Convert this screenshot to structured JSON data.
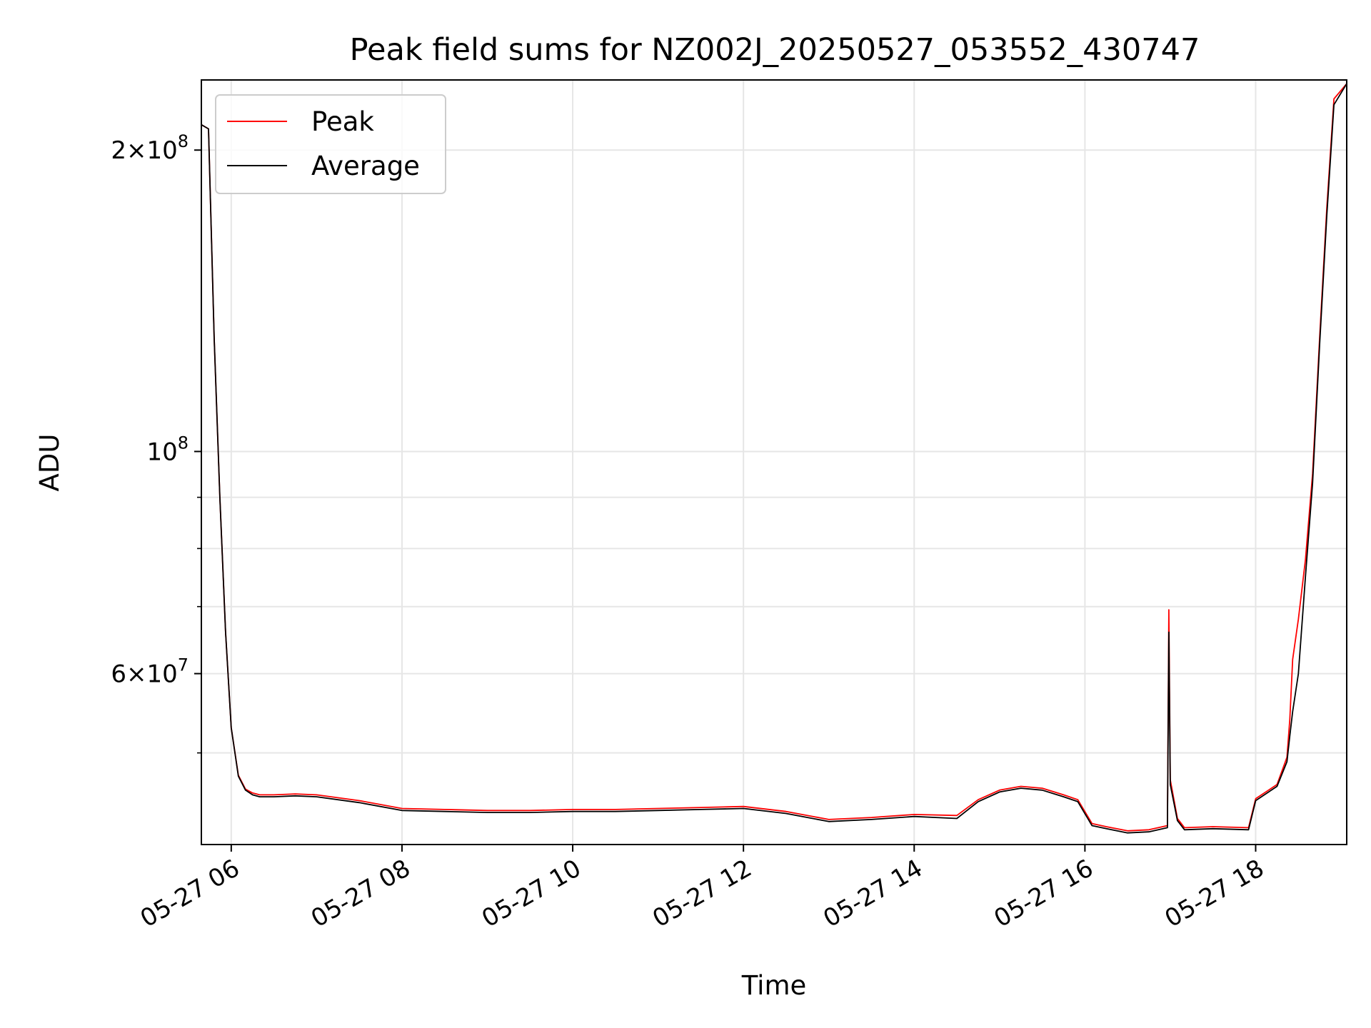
{
  "chart_data": {
    "type": "line",
    "title": "Peak field sums for NZ002J_20250527_053552_430747",
    "xlabel": "Time",
    "ylabel": "ADU",
    "y_scale": "log",
    "xlim": [
      "2025-05-27 05:39",
      "2025-05-27 19:04"
    ],
    "ylim": [
      40500000,
      235000000
    ],
    "grid": true,
    "legend_position": "top-left",
    "x_ticks": [
      {
        "value": "2025-05-27 06:00",
        "label": "05-27 06"
      },
      {
        "value": "2025-05-27 08:00",
        "label": "05-27 08"
      },
      {
        "value": "2025-05-27 10:00",
        "label": "05-27 10"
      },
      {
        "value": "2025-05-27 12:00",
        "label": "05-27 12"
      },
      {
        "value": "2025-05-27 14:00",
        "label": "05-27 14"
      },
      {
        "value": "2025-05-27 16:00",
        "label": "05-27 16"
      },
      {
        "value": "2025-05-27 18:00",
        "label": "05-27 18"
      }
    ],
    "y_ticks_major": [
      {
        "value": 60000000,
        "mantissa": "6",
        "base": "10",
        "exp": "7"
      },
      {
        "value": 100000000,
        "mantissa": "",
        "base": "10",
        "exp": "8"
      },
      {
        "value": 200000000,
        "mantissa": "2",
        "base": "10",
        "exp": "8"
      }
    ],
    "y_ticks_minor": [
      50000000,
      70000000,
      80000000,
      90000000,
      300000000
    ],
    "series": [
      {
        "name": "Peak",
        "color": "#ff0000",
        "x": [
          "2025-05-27 05:39",
          "2025-05-27 05:44",
          "2025-05-27 05:48",
          "2025-05-27 05:52",
          "2025-05-27 05:56",
          "2025-05-27 06:00",
          "2025-05-27 06:05",
          "2025-05-27 06:10",
          "2025-05-27 06:15",
          "2025-05-27 06:20",
          "2025-05-27 06:30",
          "2025-05-27 06:45",
          "2025-05-27 07:00",
          "2025-05-27 07:30",
          "2025-05-27 08:00",
          "2025-05-27 08:30",
          "2025-05-27 09:00",
          "2025-05-27 09:30",
          "2025-05-27 10:00",
          "2025-05-27 10:30",
          "2025-05-27 11:00",
          "2025-05-27 11:30",
          "2025-05-27 12:00",
          "2025-05-27 12:30",
          "2025-05-27 13:00",
          "2025-05-27 13:30",
          "2025-05-27 14:00",
          "2025-05-27 14:30",
          "2025-05-27 14:45",
          "2025-05-27 15:00",
          "2025-05-27 15:15",
          "2025-05-27 15:30",
          "2025-05-27 15:45",
          "2025-05-27 15:55",
          "2025-05-27 16:05",
          "2025-05-27 16:15",
          "2025-05-27 16:30",
          "2025-05-27 16:45",
          "2025-05-27 16:58",
          "2025-05-27 16:59",
          "2025-05-27 17:00",
          "2025-05-27 17:05",
          "2025-05-27 17:10",
          "2025-05-27 17:30",
          "2025-05-27 17:55",
          "2025-05-27 18:00",
          "2025-05-27 18:15",
          "2025-05-27 18:22",
          "2025-05-27 18:24",
          "2025-05-27 18:26",
          "2025-05-27 18:30",
          "2025-05-27 18:35",
          "2025-05-27 18:40",
          "2025-05-27 18:45",
          "2025-05-27 18:50",
          "2025-05-27 18:55",
          "2025-05-27 19:04"
        ],
        "y": [
          212000000,
          210000000,
          130000000,
          90000000,
          66000000,
          53000000,
          47500000,
          46000000,
          45600000,
          45400000,
          45400000,
          45500000,
          45400000,
          44800000,
          44000000,
          43900000,
          43800000,
          43800000,
          43900000,
          43900000,
          44000000,
          44100000,
          44200000,
          43700000,
          42900000,
          43100000,
          43400000,
          43300000,
          44900000,
          45900000,
          46300000,
          46100000,
          45400000,
          44900000,
          42500000,
          42200000,
          41800000,
          41900000,
          42300000,
          69500000,
          47000000,
          43000000,
          42100000,
          42200000,
          42100000,
          45000000,
          46500000,
          49500000,
          54000000,
          62000000,
          68000000,
          78000000,
          95000000,
          130000000,
          175000000,
          225000000,
          233000000
        ]
      },
      {
        "name": "Average",
        "color": "#000000",
        "x": [
          "2025-05-27 05:39",
          "2025-05-27 05:44",
          "2025-05-27 05:48",
          "2025-05-27 05:52",
          "2025-05-27 05:56",
          "2025-05-27 06:00",
          "2025-05-27 06:05",
          "2025-05-27 06:10",
          "2025-05-27 06:15",
          "2025-05-27 06:20",
          "2025-05-27 06:30",
          "2025-05-27 06:45",
          "2025-05-27 07:00",
          "2025-05-27 07:30",
          "2025-05-27 08:00",
          "2025-05-27 08:30",
          "2025-05-27 09:00",
          "2025-05-27 09:30",
          "2025-05-27 10:00",
          "2025-05-27 10:30",
          "2025-05-27 11:00",
          "2025-05-27 11:30",
          "2025-05-27 12:00",
          "2025-05-27 12:30",
          "2025-05-27 13:00",
          "2025-05-27 13:30",
          "2025-05-27 14:00",
          "2025-05-27 14:30",
          "2025-05-27 14:45",
          "2025-05-27 15:00",
          "2025-05-27 15:15",
          "2025-05-27 15:30",
          "2025-05-27 15:45",
          "2025-05-27 15:55",
          "2025-05-27 16:05",
          "2025-05-27 16:15",
          "2025-05-27 16:30",
          "2025-05-27 16:45",
          "2025-05-27 16:58",
          "2025-05-27 16:59",
          "2025-05-27 17:00",
          "2025-05-27 17:05",
          "2025-05-27 17:10",
          "2025-05-27 17:30",
          "2025-05-27 17:55",
          "2025-05-27 18:00",
          "2025-05-27 18:15",
          "2025-05-27 18:22",
          "2025-05-27 18:24",
          "2025-05-27 18:26",
          "2025-05-27 18:30",
          "2025-05-27 18:35",
          "2025-05-27 18:40",
          "2025-05-27 18:45",
          "2025-05-27 18:50",
          "2025-05-27 18:55",
          "2025-05-27 19:04"
        ],
        "y": [
          212000000,
          210000000,
          130000000,
          90000000,
          66000000,
          53000000,
          47400000,
          45900000,
          45400000,
          45200000,
          45200000,
          45300000,
          45200000,
          44600000,
          43800000,
          43700000,
          43600000,
          43600000,
          43700000,
          43700000,
          43800000,
          43900000,
          44000000,
          43500000,
          42700000,
          42900000,
          43200000,
          43000000,
          44700000,
          45700000,
          46100000,
          45900000,
          45200000,
          44700000,
          42300000,
          42000000,
          41600000,
          41700000,
          42100000,
          66000000,
          46500000,
          42800000,
          41900000,
          42000000,
          41900000,
          44800000,
          46300000,
          49000000,
          52000000,
          55000000,
          60000000,
          75000000,
          93000000,
          128000000,
          172000000,
          222000000,
          233000000
        ]
      }
    ]
  }
}
